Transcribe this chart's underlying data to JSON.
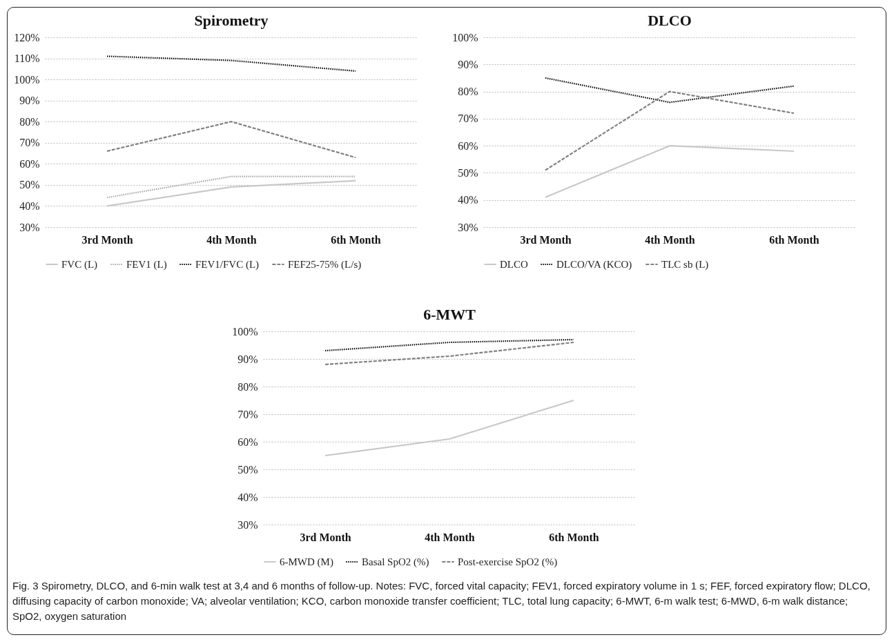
{
  "chart_data": [
    {
      "type": "line",
      "title": "Spirometry",
      "categories": [
        "3rd Month",
        "4th Month",
        "6th Month"
      ],
      "series": [
        {
          "name": "FVC (L)",
          "color": "#c8c8c8",
          "line_style": "solid",
          "values": [
            40,
            49,
            52
          ]
        },
        {
          "name": "FEV1 (L)",
          "color": "#a6a6a6",
          "line_style": "dotted",
          "values": [
            44,
            54,
            54
          ]
        },
        {
          "name": "FEV1/FVC (L)",
          "color": "#000000",
          "line_style": "dotted",
          "values": [
            111,
            109,
            104
          ]
        },
        {
          "name": "FEF25-75% (L/s)",
          "color": "#7f7f7f",
          "line_style": "dashed",
          "values": [
            66,
            80,
            63
          ]
        }
      ],
      "ylim": [
        30,
        120
      ],
      "yticks": [
        {
          "value": 30,
          "label": "30%"
        },
        {
          "value": 40,
          "label": "40%"
        },
        {
          "value": 50,
          "label": "50%"
        },
        {
          "value": 60,
          "label": "60%"
        },
        {
          "value": 70,
          "label": "70%"
        },
        {
          "value": 80,
          "label": "80%"
        },
        {
          "value": 90,
          "label": "90%"
        },
        {
          "value": 100,
          "label": "100%"
        },
        {
          "value": 110,
          "label": "110%"
        },
        {
          "value": 120,
          "label": "120%"
        }
      ],
      "grid": "y",
      "legend": "bottom"
    },
    {
      "type": "line",
      "title": "DLCO",
      "categories": [
        "3rd Month",
        "4th Month",
        "6th Month"
      ],
      "series": [
        {
          "name": "DLCO",
          "color": "#c8c8c8",
          "line_style": "solid",
          "values": [
            41,
            60,
            58
          ]
        },
        {
          "name": "DLCO/VA (KCO)",
          "color": "#000000",
          "line_style": "dotted",
          "values": [
            85,
            76,
            82
          ]
        },
        {
          "name": "TLC sb (L)",
          "color": "#7f7f7f",
          "line_style": "dashed",
          "values": [
            51,
            80,
            72
          ]
        }
      ],
      "ylim": [
        30,
        100
      ],
      "yticks": [
        {
          "value": 30,
          "label": "30%"
        },
        {
          "value": 40,
          "label": "40%"
        },
        {
          "value": 50,
          "label": "50%"
        },
        {
          "value": 60,
          "label": "60%"
        },
        {
          "value": 70,
          "label": "70%"
        },
        {
          "value": 80,
          "label": "80%"
        },
        {
          "value": 90,
          "label": "90%"
        },
        {
          "value": 100,
          "label": "100%"
        }
      ],
      "grid": "y",
      "legend": "bottom"
    },
    {
      "type": "line",
      "title": "6-MWT",
      "categories": [
        "3rd Month",
        "4th Month",
        "6th Month"
      ],
      "series": [
        {
          "name": "6-MWD (M)",
          "color": "#c8c8c8",
          "line_style": "solid",
          "values": [
            55,
            61,
            75
          ]
        },
        {
          "name": "Basal SpO2 (%)",
          "color": "#000000",
          "line_style": "dotted",
          "values": [
            93,
            96,
            97
          ]
        },
        {
          "name": "Post-exercise SpO2 (%)",
          "color": "#7f7f7f",
          "line_style": "dashed",
          "values": [
            88,
            91,
            96
          ]
        }
      ],
      "ylim": [
        30,
        100
      ],
      "yticks": [
        {
          "value": 30,
          "label": "30%"
        },
        {
          "value": 40,
          "label": "40%"
        },
        {
          "value": 50,
          "label": "50%"
        },
        {
          "value": 60,
          "label": "60%"
        },
        {
          "value": 70,
          "label": "70%"
        },
        {
          "value": 80,
          "label": "80%"
        },
        {
          "value": 90,
          "label": "90%"
        },
        {
          "value": 100,
          "label": "100%"
        }
      ],
      "grid": "y",
      "legend": "bottom",
      "annotations": [
        "Fig. 3 Spirometry, DLCO, and 6-min walk test at 3,4 and 6 months of follow-up. Notes: FVC, forced vital capacity; FEV1, forced expiratory volume in 1 s; FEF, forced expiratory flow; DLCO, diffusing capacity of carbon monoxide; VA; alveolar ventilation; KCO, carbon monoxide transfer coefficient; TLC, total lung capacity; 6-MWT, 6-m walk test; 6-MWD, 6-m walk distance; SpO2, oxygen saturation"
      ]
    }
  ]
}
